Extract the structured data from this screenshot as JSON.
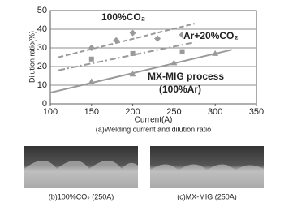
{
  "chart_data": {
    "type": "scatter",
    "xlabel": "Current(A)",
    "ylabel": "Dilution ratio(%)",
    "caption": "(a)Welding current and dilution ratio",
    "xlim": [
      100,
      350
    ],
    "xticks": [
      100,
      150,
      200,
      250,
      300,
      350
    ],
    "ylim": [
      0,
      50
    ],
    "yticks": [
      0,
      10,
      20,
      30,
      40,
      50
    ],
    "grid": true,
    "series": [
      {
        "name": "100%CO₂",
        "color": "#9a9a9a",
        "marker": "diamond",
        "dash": "6,3",
        "x": [
          150,
          180,
          200,
          230,
          260
        ],
        "values": [
          30,
          34,
          38,
          35,
          37
        ],
        "trend": {
          "x": [
            110,
            275
          ],
          "values": [
            25,
            43
          ]
        }
      },
      {
        "name": "Ar+20%CO₂",
        "color": "#9a9a9a",
        "marker": "square",
        "dash": "8,3,2,3",
        "x": [
          150,
          200,
          260
        ],
        "values": [
          24,
          27,
          28
        ],
        "trend": {
          "x": [
            110,
            275
          ],
          "values": [
            18,
            33
          ]
        }
      },
      {
        "name": "MX-MIG process",
        "color": "#9a9a9a",
        "marker": "triangle",
        "dash": "",
        "x": [
          150,
          200,
          250,
          300
        ],
        "values": [
          12,
          16,
          22,
          27
        ],
        "trend": {
          "x": [
            100,
            320
          ],
          "values": [
            6,
            29
          ]
        }
      }
    ],
    "annotations": [
      "(100%Ar)"
    ]
  },
  "photos": [
    {
      "caption": "(b)100%CO₂ (250A)"
    },
    {
      "caption": "(c)MX-MIG (250A)"
    }
  ]
}
